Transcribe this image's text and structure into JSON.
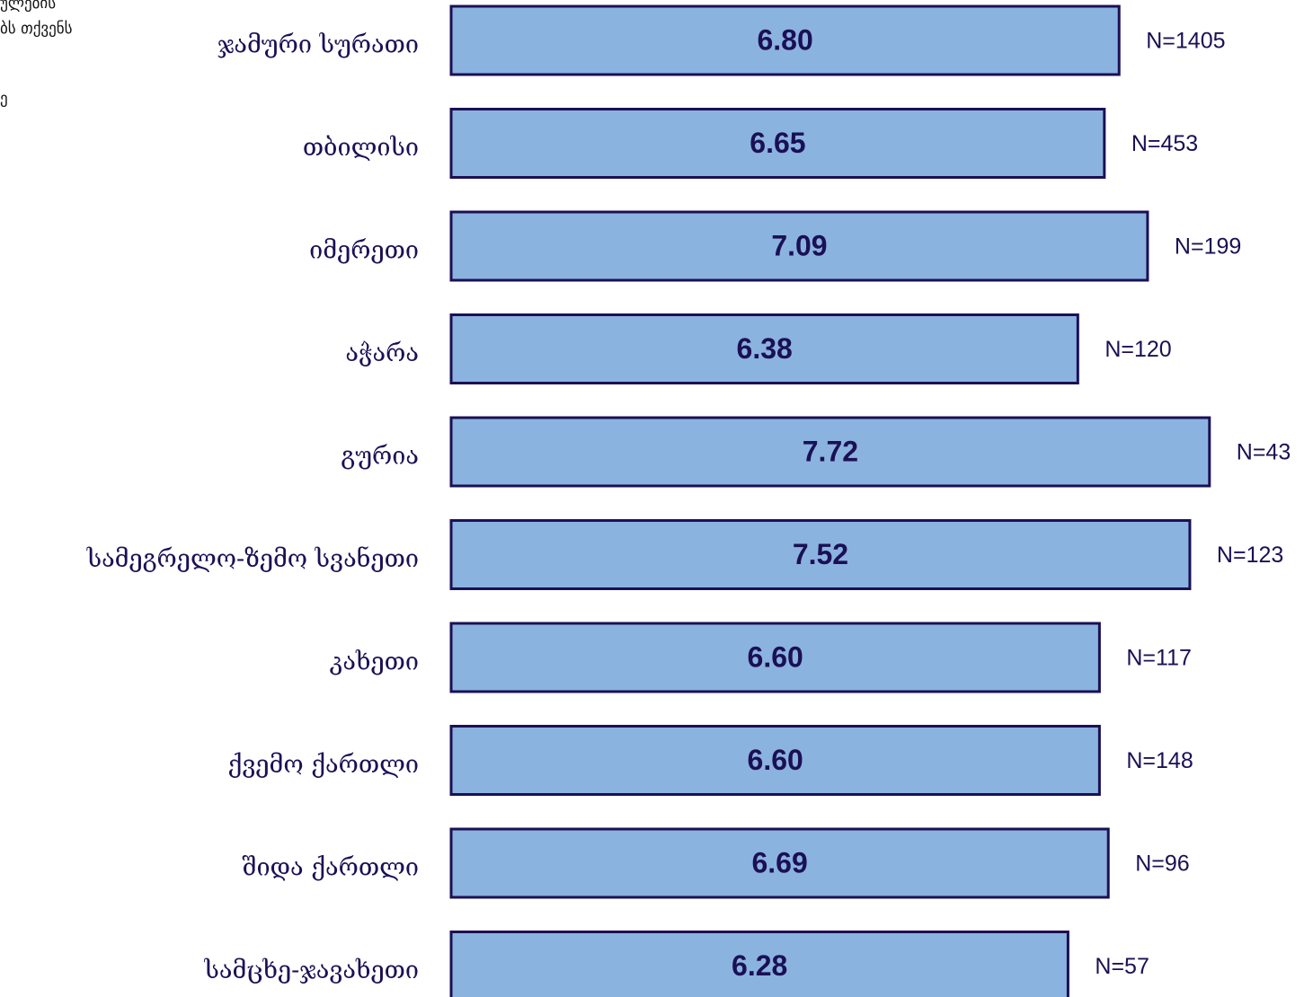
{
  "corner_note": {
    "lines": [
      "ულების",
      "ბს თქვენს",
      "ე"
    ]
  },
  "colors": {
    "bar_fill": "#8bb3e0",
    "bar_stroke": "#1b1055",
    "category_text": "#1b1055",
    "value_text": "#1b1055",
    "n_text": "#1b1055"
  },
  "chart_data": {
    "type": "bar",
    "orientation": "horizontal",
    "categories": [
      "ჯამური სურათი",
      "თბილისი",
      "იმერეთი",
      "აჭარა",
      "გურია",
      "სამეგრელო-ზემო სვანეთი",
      "კახეთი",
      "ქვემო ქართლი",
      "შიდა ქართლი",
      "სამცხე-ჯავახეთი"
    ],
    "values": [
      6.8,
      6.65,
      7.09,
      6.38,
      7.72,
      7.52,
      6.6,
      6.6,
      6.69,
      6.28
    ],
    "value_labels": [
      "6.80",
      "6.65",
      "7.09",
      "6.38",
      "7.72",
      "7.52",
      "6.60",
      "6.60",
      "6.69",
      "6.28"
    ],
    "n_labels": [
      "N=1405",
      "N=453",
      "N=199",
      "N=120",
      "N=43",
      "N=123",
      "N=117",
      "N=148",
      "N=96",
      "N=57"
    ],
    "xlim": [
      0,
      10
    ],
    "grid": false,
    "legend": "none"
  }
}
